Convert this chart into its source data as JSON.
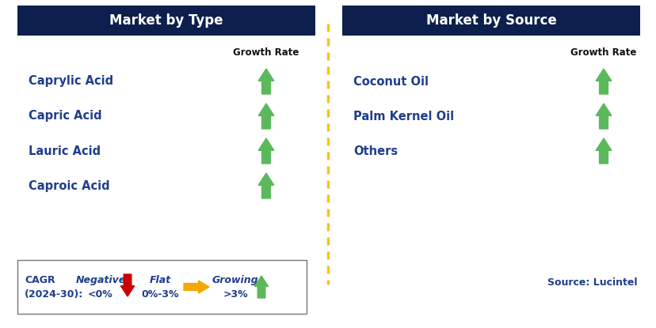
{
  "left_panel_title": "Market by Type",
  "right_panel_title": "Market by Source",
  "left_items": [
    "Caprylic Acid",
    "Capric Acid",
    "Lauric Acid",
    "Caproic Acid"
  ],
  "right_items": [
    "Coconut Oil",
    "Palm Kernel Oil",
    "Others"
  ],
  "growth_rate_label": "Growth Rate",
  "header_bg_color": "#0d1f4c",
  "header_text_color": "#ffffff",
  "item_text_color": "#1f3d8c",
  "source_text_color": "#1f3d8c",
  "legend_label_color": "#1f3d8c",
  "divider_color": "#f5c518",
  "bg_color": "#ffffff",
  "green_arrow_color": "#5cb85c",
  "red_arrow_color": "#cc0000",
  "yellow_arrow_color": "#f5a800",
  "source_text": "Source: Lucintel",
  "legend_cagr_line1": "CAGR",
  "legend_cagr_line2": "(2024-30):",
  "legend_neg_label": "Negative",
  "legend_neg_sub": "<0%",
  "legend_flat_label": "Flat",
  "legend_flat_sub": "0%-3%",
  "legend_grow_label": "Growing",
  "legend_grow_sub": ">3%"
}
